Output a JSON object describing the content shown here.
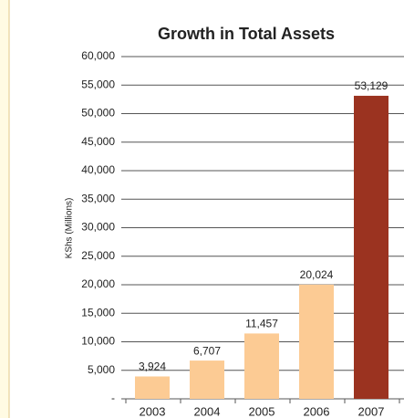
{
  "chart_data": {
    "type": "bar",
    "title": "Growth in Total Assets",
    "y_label": "KShs (Millions)",
    "categories": [
      "2003",
      "2004",
      "2005",
      "2006",
      "2007"
    ],
    "values": [
      3924,
      6707,
      11457,
      20024,
      53129
    ],
    "value_labels": [
      "3,924",
      "6,707",
      "11,457",
      "20,024",
      "53,129"
    ],
    "colors": [
      "#fccb94",
      "#fccb94",
      "#fccb94",
      "#fccb94",
      "#9b3320"
    ],
    "ylim": [
      0,
      60000
    ],
    "yticks": [
      {
        "value": 0,
        "label": "-"
      },
      {
        "value": 5000,
        "label": "5,000"
      },
      {
        "value": 10000,
        "label": "10,000"
      },
      {
        "value": 15000,
        "label": "15,000"
      },
      {
        "value": 20000,
        "label": "20,000"
      },
      {
        "value": 25000,
        "label": "25,000"
      },
      {
        "value": 30000,
        "label": "30,000"
      },
      {
        "value": 35000,
        "label": "35,000"
      },
      {
        "value": 40000,
        "label": "40,000"
      },
      {
        "value": 45000,
        "label": "45,000"
      },
      {
        "value": 50000,
        "label": "50,000"
      },
      {
        "value": 55000,
        "label": "55,000"
      },
      {
        "value": 60000,
        "label": "60,000"
      }
    ],
    "grid": true
  }
}
